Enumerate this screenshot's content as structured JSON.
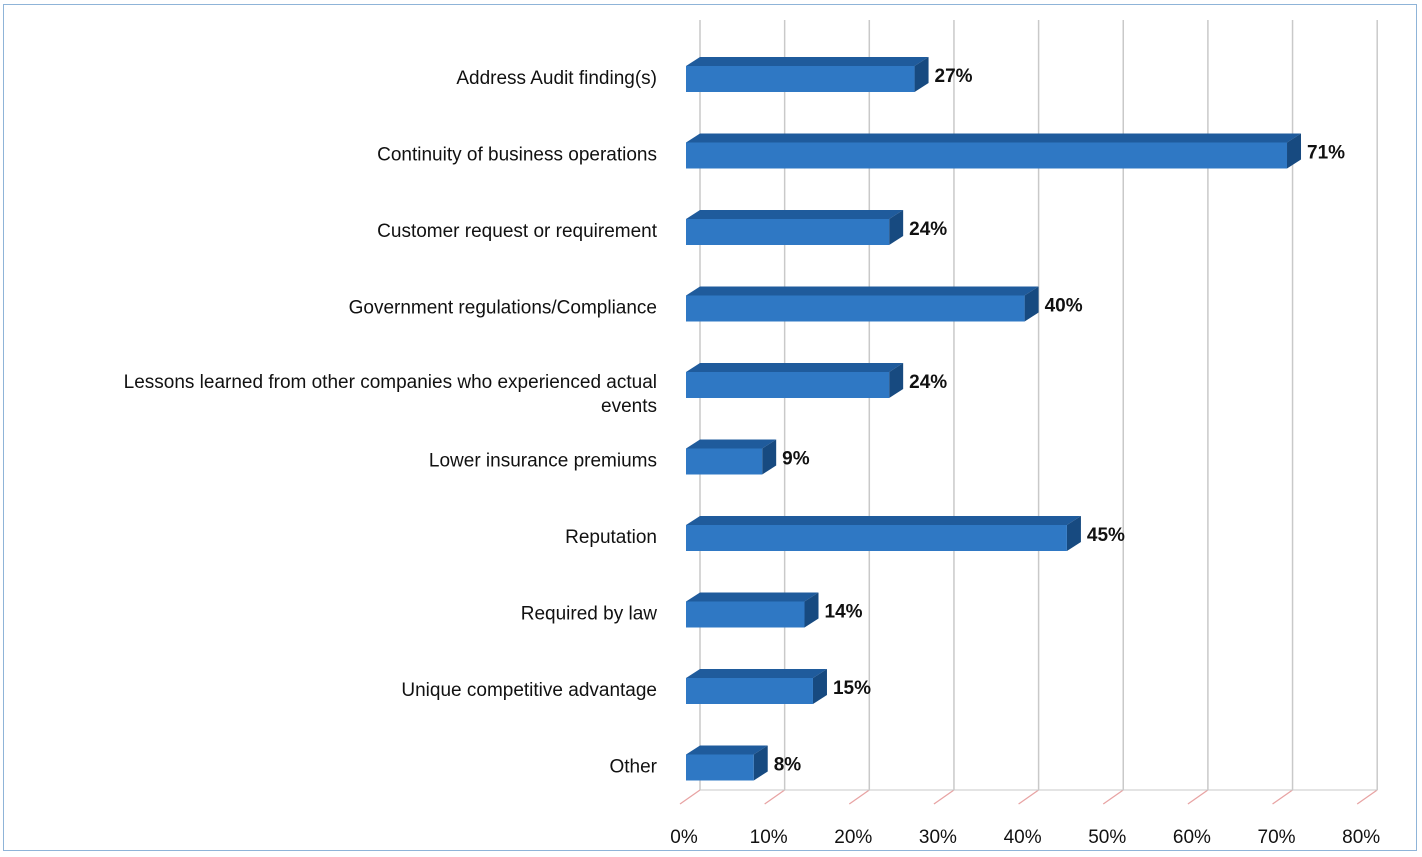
{
  "chart_data": {
    "type": "bar",
    "orientation": "horizontal",
    "style": "3d",
    "categories": [
      "Address Audit finding(s)",
      "Continuity of business operations",
      "Customer request or requirement",
      "Government regulations/Compliance",
      "Lessons learned from other companies who experienced actual events",
      "Lower insurance premiums",
      "Reputation",
      "Required by law",
      "Unique competitive advantage",
      "Other"
    ],
    "category_label_lines": [
      [
        "Address Audit finding(s)"
      ],
      [
        "Continuity of business operations"
      ],
      [
        "Customer request or requirement"
      ],
      [
        "Government regulations/Compliance"
      ],
      [
        "Lessons learned from other companies who experienced actual",
        "events"
      ],
      [
        "Lower insurance premiums"
      ],
      [
        "Reputation"
      ],
      [
        "Required by law"
      ],
      [
        "Unique competitive advantage"
      ],
      [
        "Other"
      ]
    ],
    "values": [
      27,
      71,
      24,
      40,
      24,
      9,
      45,
      14,
      15,
      8
    ],
    "data_labels": [
      "27%",
      "71%",
      "24%",
      "40%",
      "24%",
      "9%",
      "45%",
      "14%",
      "15%",
      "8%"
    ],
    "x_ticks": [
      "0%",
      "10%",
      "20%",
      "30%",
      "40%",
      "50%",
      "60%",
      "70%",
      "80%"
    ],
    "xlim": [
      0,
      80
    ],
    "title": "",
    "xlabel": "",
    "ylabel": "",
    "grid": true,
    "legend": "none",
    "colors": {
      "bar_front": "#2f78c4",
      "bar_top": "#1f5b9c",
      "bar_side": "#174a80",
      "gridline": "#c9c9c9",
      "floor": "#e8a3a3",
      "frame": "#8fb4d8"
    }
  }
}
